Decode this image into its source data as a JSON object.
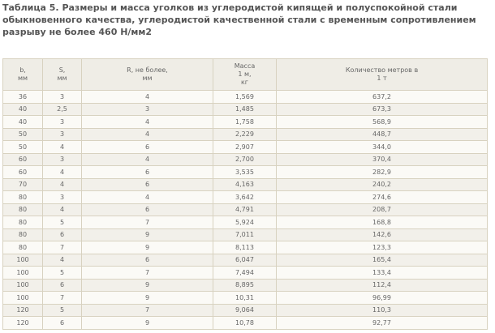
{
  "title": "Таблица 5. Размеры и масса уголков из углеродистой кипящей и полуспокойной стали обыкновенного качества, углеродистой качественной стали с временным сопротивлением разрыву не более 460 Н/мм2",
  "table": {
    "headers": [
      [
        "b,",
        "мм"
      ],
      [
        "S,",
        "мм"
      ],
      [
        "R, не более,",
        "мм"
      ],
      [
        "Масса",
        "1 м,",
        "кг"
      ],
      [
        "Количество метров в",
        "1 т"
      ]
    ],
    "rows": [
      [
        "36",
        "3",
        "4",
        "1,569",
        "637,2"
      ],
      [
        "40",
        "2,5",
        "3",
        "1,485",
        "673,3"
      ],
      [
        "40",
        "3",
        "4",
        "1,758",
        "568,9"
      ],
      [
        "50",
        "3",
        "4",
        "2,229",
        "448,7"
      ],
      [
        "50",
        "4",
        "6",
        "2,907",
        "344,0"
      ],
      [
        "60",
        "3",
        "4",
        "2,700",
        "370,4"
      ],
      [
        "60",
        "4",
        "6",
        "3,535",
        "282,9"
      ],
      [
        "70",
        "4",
        "6",
        "4,163",
        "240,2"
      ],
      [
        "80",
        "3",
        "4",
        "3,642",
        "274,6"
      ],
      [
        "80",
        "4",
        "6",
        "4,791",
        "208,7"
      ],
      [
        "80",
        "5",
        "7",
        "5,924",
        "168,8"
      ],
      [
        "80",
        "6",
        "9",
        "7,011",
        "142,6"
      ],
      [
        "80",
        "7",
        "9",
        "8,113",
        "123,3"
      ],
      [
        "100",
        "4",
        "6",
        "6,047",
        "165,4"
      ],
      [
        "100",
        "5",
        "7",
        "7,494",
        "133,4"
      ],
      [
        "100",
        "6",
        "9",
        "8,895",
        "112,4"
      ],
      [
        "100",
        "7",
        "9",
        "10,31",
        "96,99"
      ],
      [
        "120",
        "5",
        "7",
        "9,064",
        "110,3"
      ],
      [
        "120",
        "6",
        "9",
        "10,78",
        "92,77"
      ]
    ]
  }
}
